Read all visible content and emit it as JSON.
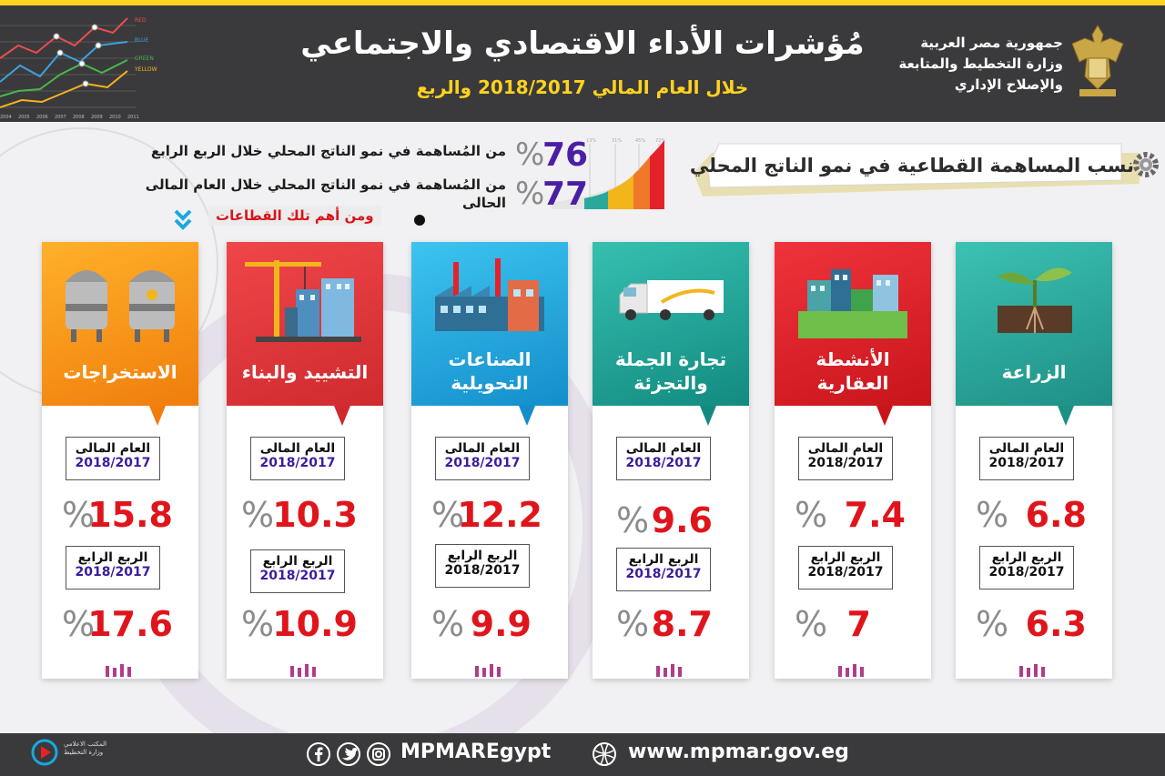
{
  "header": {
    "title": "مُؤشرات الأداء الاقتصادي والاجتماعي",
    "subtitle": "خلال  العام المالي 2018/2017 والربع",
    "ministry": [
      "جمهورية مصر العربية",
      "وزارة التخطيط والمتابعة",
      "والإصلاح الإداري"
    ],
    "chart_legend": [
      "RED",
      "BLUE",
      "GREEN",
      "YELLOW"
    ],
    "chart_years": [
      "2004",
      "2005",
      "2006",
      "2007",
      "2008",
      "2009",
      "2010",
      "2011"
    ]
  },
  "section": {
    "title": "نسب المساهمة القطاعية في نمو الناتج المحلي",
    "icon": "gear-icon",
    "stats": [
      {
        "value": "76",
        "percent": "%",
        "text": "من المُساهمة في نمو الناتج المحلي خلال الربع الرابع"
      },
      {
        "value": "77",
        "percent": "%",
        "text_line1": "من المُساهمة في نمو الناتج المحلي خلال العام المالى",
        "text_line2": "الحالى"
      }
    ],
    "mini_bar_labels": [
      "13%",
      "31%",
      "45%",
      "72%"
    ],
    "sectors_label": "ومن أهم تلك القطاعات"
  },
  "sectors": [
    {
      "name": "الزراعة",
      "icon": "plant-icon",
      "color": "#2aa89c",
      "year_label": "العام المالى",
      "year": "2018/2017",
      "year_value": "6.8",
      "q_label": "الربع الرابع",
      "q_year": "2018/2017",
      "q_value": "6.3",
      "percent": "%"
    },
    {
      "name": "الأنشطة العقارية",
      "icon": "buildings-icon",
      "color": "#e4222b",
      "year_label": "العام المالى",
      "year": "2018/2017",
      "year_value": "7.4",
      "q_label": "الربع الرابع",
      "q_year": "2018/2017",
      "q_value": "7",
      "percent": "%"
    },
    {
      "name": "تجارة الجملة والتجزئة",
      "icon": "truck-icon",
      "color": "#1fa59a",
      "year_label": "العام المالى",
      "year": "2018/2017",
      "year_value": "9.6",
      "q_label": "الربع الرابع",
      "q_year": "2018/2017",
      "q_value": "8.7",
      "percent": "%"
    },
    {
      "name": "الصناعات التحويلية",
      "icon": "factory-icon",
      "color": "#1aa8de",
      "year_label": "العام المالى",
      "year": "2018/2017",
      "year_value": "12.2",
      "q_label": "الربع الرابع",
      "q_year": "2018/2017",
      "q_value": "9.9",
      "percent": "%"
    },
    {
      "name": "التشييد والبناء",
      "icon": "crane-icon",
      "color": "#e63a3c",
      "year_label": "العام المالى",
      "year": "2018/2017",
      "year_value": "10.3",
      "q_label": "الربع الرابع",
      "q_year": "2018/2017",
      "q_value": "10.9",
      "percent": "%"
    },
    {
      "name": "الاستخراجات",
      "icon": "tanks-icon",
      "color": "#f59a17",
      "year_label": "العام المالى",
      "year": "2018/2017",
      "year_value": "15.8",
      "q_label": "الربع الرابع",
      "q_year": "2018/2017",
      "q_value": "17.6",
      "percent": "%"
    }
  ],
  "footer": {
    "office": [
      "المكتب الاعلامي",
      "وزارة التخطيط"
    ],
    "handle": "MPMAREgypt",
    "website": "www.mpmar.gov.eg",
    "icons": [
      "facebook-icon",
      "twitter-icon",
      "instagram-icon",
      "globe-icon"
    ]
  }
}
